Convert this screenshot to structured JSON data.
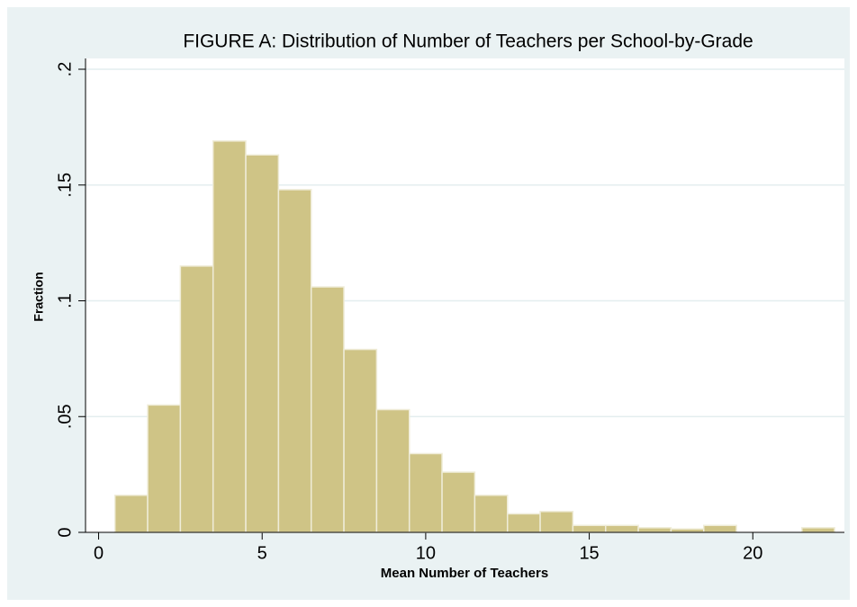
{
  "chart_data": {
    "type": "histogram",
    "title": "FIGURE A: Distribution of Number of Teachers per School-by-Grade",
    "x_label": "Mean Number of Teachers",
    "y_label": "Fraction",
    "bins": [
      0.5,
      1.5,
      2.5,
      3.5,
      4.5,
      5.5,
      6.5,
      7.5,
      8.5,
      9.5,
      10.5,
      11.5,
      12.5,
      13.5,
      14.5,
      15.5,
      16.5,
      17.5,
      18.5,
      19.5,
      20.5,
      21.5,
      22.5
    ],
    "values": [
      0.016,
      0.055,
      0.115,
      0.169,
      0.163,
      0.148,
      0.106,
      0.079,
      0.053,
      0.034,
      0.026,
      0.016,
      0.008,
      0.009,
      0.003,
      0.003,
      0.002,
      0.0015,
      0.003,
      0,
      0,
      0.002
    ],
    "color": "#cfc486",
    "xlim": [
      -0.4,
      22.8
    ],
    "ylim": [
      0,
      0.2
    ],
    "xticks": [
      0,
      5,
      10,
      15,
      20
    ],
    "yticks": [
      0,
      {
        "value": 0.05,
        "label": ".05"
      },
      {
        "value": 0.1,
        "label": ".1"
      },
      {
        "value": 0.15,
        "label": ".15"
      },
      {
        "value": 0.2,
        "label": ".2"
      }
    ],
    "grid": true
  }
}
